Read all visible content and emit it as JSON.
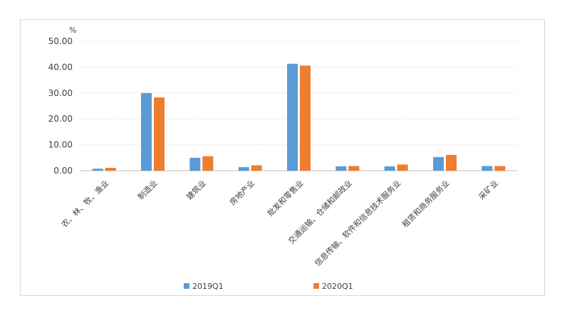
{
  "chart_data": {
    "type": "bar",
    "title": "",
    "xlabel": "",
    "ylabel": "",
    "unit_label": "%",
    "ylim": [
      0,
      50
    ],
    "yticks": [
      "0.00",
      "10.00",
      "20.00",
      "30.00",
      "40.00",
      "50.00"
    ],
    "grid": true,
    "legend_position": "bottom",
    "categories": [
      "农、林、牧、渔业",
      "制造业",
      "建筑业",
      "房地产业",
      "批发和零售业",
      "交通运输、仓储和邮政业",
      "信息传输、软件和信息技术服务业",
      "租赁和商务服务业",
      "采矿业"
    ],
    "series": [
      {
        "name": "2019Q1",
        "color": "#5b9bd5",
        "values": [
          0.8,
          30.0,
          5.0,
          1.4,
          41.3,
          1.7,
          1.7,
          5.3,
          1.8
        ]
      },
      {
        "name": "2020Q1",
        "color": "#ed7d31",
        "values": [
          1.1,
          28.3,
          5.6,
          2.1,
          40.6,
          1.8,
          2.4,
          6.1,
          1.8
        ]
      }
    ]
  }
}
